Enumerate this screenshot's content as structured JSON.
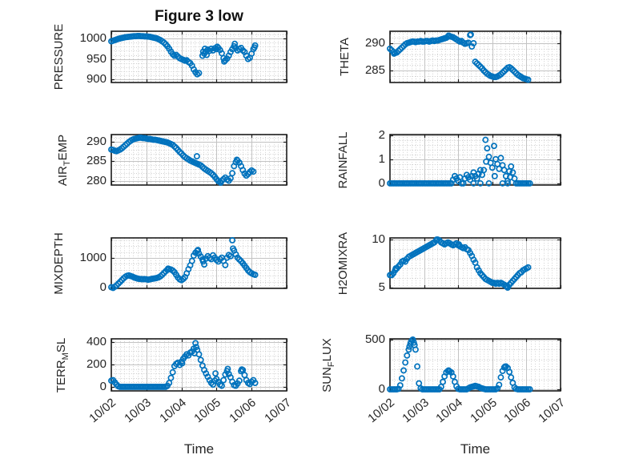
{
  "figure": {
    "title": "Figure 3 low",
    "xlabel": "Time",
    "marker_color": "#0072BD",
    "frame_color": "#1c1c1c",
    "text_color": "#262626",
    "major_grid_color": "#c3c3c3",
    "minor_grid_color": "#cccccc",
    "background_color": "#ffffff",
    "xtick_labels": [
      "10/02",
      "10/03",
      "10/04",
      "10/05",
      "10/06",
      "10/07"
    ]
  },
  "chart_data": [
    {
      "type": "scatter",
      "name": "pressure",
      "ylabel": "PRESSURE",
      "yticks": [
        900,
        950,
        1000
      ],
      "ylim": [
        893,
        1017.5
      ],
      "yminor_step": 10,
      "xlim": [
        0,
        5
      ],
      "xticks": [
        0,
        1,
        2,
        3,
        4,
        5
      ],
      "show_xtick_labels": false,
      "t0": 0,
      "dt": 0.05,
      "y": [
        993,
        994.5,
        996,
        997.5,
        999,
        1000,
        1001,
        1002,
        1003,
        1003.5,
        1004,
        1004.5,
        1005,
        1005.5,
        1005.5,
        1006,
        1006,
        1005.5,
        1005.5,
        1005,
        1005,
        1004.5,
        1004,
        1003,
        1002,
        1001,
        1000,
        998,
        996,
        993,
        990,
        986,
        981,
        975,
        968,
        962,
        958,
        960,
        956,
        952,
        950,
        948,
        946,
        947,
        943,
        940,
        934,
        925,
        918,
        913,
        916,
        null,
        958,
        963,
        968,
        973,
        970,
        975,
        971,
        976,
        974,
        977,
        972,
        964,
        952,
        947,
        951,
        958,
        967,
        974,
        981,
        977,
        971,
        974,
        977,
        971,
        967,
        958,
        950,
        953,
        963,
        974,
        983
      ],
      "extra_points": [
        [
          2.62,
          968
        ],
        [
          2.67,
          975
        ],
        [
          2.72,
          960
        ],
        [
          3.02,
          980
        ],
        [
          3.22,
          944
        ],
        [
          3.52,
          987
        ],
        [
          4.08,
          978
        ]
      ]
    },
    {
      "type": "scatter",
      "name": "theta",
      "ylabel": "THETA",
      "yticks": [
        285,
        290
      ],
      "ylim": [
        282.8,
        292.2
      ],
      "yminor_step": 1,
      "xlim": [
        0,
        5
      ],
      "xticks": [
        0,
        1,
        2,
        3,
        4,
        5
      ],
      "show_xtick_labels": false,
      "t0": 0,
      "dt": 0.05,
      "y": [
        289,
        288.7,
        288.4,
        288.2,
        288.3,
        288.6,
        288.9,
        289.2,
        289.5,
        289.8,
        290,
        290.1,
        290.2,
        290.3,
        290.3,
        290.2,
        290.3,
        290.3,
        290.4,
        290.3,
        290.3,
        290.4,
        290.4,
        290.3,
        290.4,
        290.5,
        290.4,
        290.5,
        290.5,
        290.6,
        290.7,
        290.8,
        290.9,
        291,
        291.2,
        291.3,
        291.2,
        291.1,
        290.9,
        290.7,
        290.5,
        290.3,
        290.4,
        290.1,
        289.9,
        290,
        290.1,
        291.5,
        289.4,
        290,
        286.6,
        286.3,
        286,
        285.7,
        285.4,
        285,
        284.7,
        284.4,
        284.2,
        284,
        283.9,
        283.8,
        283.8,
        283.9,
        284.1,
        284.3,
        284.6,
        284.9,
        285.2,
        285.5,
        285.6,
        285.4,
        285.1,
        284.8,
        284.5,
        284.2,
        284,
        283.8,
        283.6,
        283.5,
        283.4,
        283.3
      ],
      "extra_points": [
        [
          0.12,
          288.1
        ],
        [
          1.72,
          291.4
        ],
        [
          2.37,
          291.6
        ]
      ]
    },
    {
      "type": "scatter",
      "name": "air-temp",
      "ylabel": "AIR_{T}EMP",
      "yticks": [
        280,
        285,
        290
      ],
      "ylim": [
        279,
        291.8
      ],
      "yminor_step": 1,
      "xlim": [
        0,
        5
      ],
      "xticks": [
        0,
        1,
        2,
        3,
        4,
        5
      ],
      "show_xtick_labels": false,
      "t0": 0,
      "dt": 0.05,
      "y": [
        288,
        287.9,
        287.7,
        287.6,
        287.8,
        288,
        288.3,
        288.7,
        289.1,
        289.5,
        289.9,
        290.2,
        290.5,
        290.7,
        290.8,
        290.9,
        291,
        291,
        290.9,
        290.9,
        290.8,
        290.7,
        290.7,
        290.6,
        290.5,
        290.5,
        290.4,
        290.3,
        290.2,
        290.1,
        290,
        289.9,
        289.8,
        289.6,
        289.4,
        289.2,
        288.8,
        288.4,
        287.9,
        287.4,
        287,
        286.5,
        286.1,
        285.8,
        285.5,
        285.2,
        285,
        284.8,
        284.6,
        284.4,
        284.2,
        284,
        283.6,
        283.2,
        282.9,
        282.6,
        282.3,
        282,
        281.6,
        281.1,
        280.5,
        280,
        279.8,
        280.1,
        280.5,
        280.9,
        280.4,
        280.1,
        280.7,
        282,
        283.8,
        284.8,
        285.2,
        284.7,
        283.8,
        282.8,
        281.9,
        281.4,
        281.8,
        282.3,
        282.7,
        282.4
      ],
      "extra_points": [
        [
          2.44,
          286.3
        ],
        [
          3.12,
          279.6
        ],
        [
          3.58,
          285.4
        ]
      ]
    },
    {
      "type": "scatter",
      "name": "rainfall",
      "ylabel": "RAINFALL",
      "yticks": [
        0,
        1,
        2
      ],
      "ylim": [
        -0.07,
        2.02
      ],
      "yminor_step": 0.2,
      "xlim": [
        0,
        5
      ],
      "xticks": [
        0,
        1,
        2,
        3,
        4,
        5
      ],
      "show_xtick_labels": false,
      "t0": 0,
      "dt": 0.05,
      "y": [
        0,
        0,
        0,
        0,
        0,
        0,
        0,
        0,
        0,
        0,
        0,
        0,
        0,
        0,
        0,
        0,
        0,
        0,
        0,
        0,
        0,
        0,
        0,
        0,
        0,
        0,
        0,
        0,
        0,
        0,
        0,
        0,
        0,
        0,
        0,
        0,
        0,
        0.15,
        0.3,
        0.2,
        0.1,
        0.25,
        0,
        0,
        0.2,
        0.35,
        0.25,
        0.15,
        0.3,
        0.45,
        0.3,
        0.2,
        0.4,
        0.55,
        0.35,
        0.55,
        1.8,
        1.45,
        1.1,
        0.85,
        0.65,
        1.55,
        1,
        0.8,
        0.6,
        1.05,
        0.75,
        0.55,
        0.3,
        0.1,
        0.5,
        0.7,
        0.45,
        0.2,
        0,
        0,
        0,
        0,
        0,
        0,
        0,
        0,
        0
      ],
      "extra_points": [
        [
          2.82,
          0.9
        ],
        [
          3.07,
          0.3
        ],
        [
          3.52,
          0.25
        ],
        [
          2.45,
          0
        ],
        [
          2.65,
          0
        ],
        [
          2.9,
          0
        ],
        [
          3.3,
          0
        ],
        [
          3.45,
          0
        ]
      ]
    },
    {
      "type": "scatter",
      "name": "mixdepth",
      "ylabel": "MIXDEPTH",
      "yticks": [
        0,
        1000
      ],
      "ylim": [
        -30,
        1680
      ],
      "yminor_step": 200,
      "xlim": [
        0,
        5
      ],
      "xticks": [
        0,
        1,
        2,
        3,
        4,
        5
      ],
      "show_xtick_labels": false,
      "t0": 0,
      "dt": 0.05,
      "y": [
        10,
        -15,
        25,
        70,
        130,
        190,
        250,
        310,
        360,
        395,
        410,
        390,
        370,
        340,
        320,
        300,
        290,
        285,
        280,
        285,
        278,
        262,
        275,
        290,
        300,
        310,
        325,
        345,
        380,
        430,
        490,
        550,
        600,
        625,
        610,
        575,
        520,
        430,
        340,
        275,
        250,
        290,
        350,
        480,
        620,
        750,
        900,
        1080,
        1180,
        1240,
        1150,
        1050,
        950,
        780,
        980,
        1060,
        1000,
        960,
        1090,
        1010,
        930,
        880,
        960,
        1010,
        900,
        760,
        1010,
        1100,
        1060,
        1600,
        1250,
        1120,
        1010,
        950,
        890,
        820,
        740,
        660,
        580,
        520,
        480,
        450,
        430
      ],
      "extra_points": [
        [
          1.62,
          640
        ],
        [
          2.47,
          1270
        ],
        [
          2.62,
          880
        ],
        [
          3.47,
          1320
        ]
      ]
    },
    {
      "type": "scatter",
      "name": "h2omixra",
      "ylabel": "H2OMIXRA",
      "yticks": [
        5,
        10
      ],
      "ylim": [
        4.92,
        10.17
      ],
      "yminor_step": 1,
      "xlim": [
        0,
        5
      ],
      "xticks": [
        0,
        1,
        2,
        3,
        4,
        5
      ],
      "show_xtick_labels": false,
      "t0": 0,
      "dt": 0.05,
      "y": [
        6.3,
        6.3,
        6.5,
        6.8,
        7,
        7.2,
        7.4,
        7.7,
        7.8,
        7.7,
        8,
        8.2,
        8.3,
        8.4,
        8.5,
        8.6,
        8.7,
        8.8,
        8.9,
        9,
        9.1,
        9.2,
        9.3,
        9.4,
        9.5,
        9.6,
        9.7,
        9.9,
        10,
        9.9,
        9.7,
        9.6,
        9.5,
        9.6,
        9.7,
        9.6,
        9.5,
        9.4,
        9.5,
        9.6,
        9.4,
        9.3,
        9.2,
        9.1,
        9.2,
        9,
        8.9,
        8.6,
        8.3,
        7.9,
        7.6,
        7.1,
        6.8,
        6.5,
        6.3,
        6.1,
        5.9,
        5.8,
        5.7,
        5.6,
        5.5,
        5.5,
        5.4,
        5.5,
        5.4,
        5.5,
        5.4,
        5.3,
        5.2,
        5,
        5.3,
        5.5,
        5.7,
        5.9,
        6.1,
        6.3,
        6.5,
        6.6,
        6.8,
        6.9,
        7,
        7.1
      ],
      "extra_points": [
        [
          0.17,
          7.0
        ],
        [
          1.37,
          10.0
        ],
        [
          2.02,
          9.5
        ],
        [
          3.42,
          5.1
        ]
      ]
    },
    {
      "type": "scatter",
      "name": "terr-msl",
      "ylabel": "TERR_{M}SL",
      "yticks": [
        0,
        200,
        400
      ],
      "ylim": [
        -36,
        428
      ],
      "yminor_step": 40,
      "xlim": [
        0,
        5
      ],
      "xticks": [
        0,
        1,
        2,
        3,
        4,
        5
      ],
      "show_xtick_labels": true,
      "t0": 0,
      "dt": 0.05,
      "y": [
        55,
        60,
        40,
        20,
        5,
        0,
        0,
        0,
        0,
        0,
        0,
        0,
        0,
        0,
        0,
        0,
        0,
        0,
        0,
        0,
        0,
        0,
        0,
        0,
        0,
        0,
        0,
        0,
        0,
        0,
        0,
        0,
        10,
        35,
        80,
        130,
        185,
        205,
        215,
        195,
        225,
        250,
        270,
        290,
        280,
        305,
        315,
        340,
        390,
        330,
        290,
        240,
        190,
        150,
        120,
        90,
        60,
        35,
        20,
        55,
        70,
        45,
        20,
        10,
        60,
        110,
        140,
        115,
        85,
        45,
        15,
        10,
        30,
        55,
        140,
        150,
        105,
        60,
        35,
        25,
        45,
        60,
        35
      ],
      "extra_points": [
        [
          2.02,
          210
        ],
        [
          2.37,
          300
        ],
        [
          2.42,
          355
        ],
        [
          2.97,
          120
        ],
        [
          3.32,
          160
        ],
        [
          3.72,
          155
        ]
      ]
    },
    {
      "type": "scatter",
      "name": "sun-flux",
      "ylabel": "SUN_{F}LUX",
      "yticks": [
        0,
        500
      ],
      "ylim": [
        -16,
        508
      ],
      "yminor_step": 100,
      "xlim": [
        0,
        5
      ],
      "xticks": [
        0,
        1,
        2,
        3,
        4,
        5
      ],
      "show_xtick_labels": true,
      "t0": 0,
      "dt": 0.05,
      "y": [
        0,
        0,
        0,
        0,
        0,
        5,
        40,
        110,
        190,
        270,
        340,
        400,
        460,
        495,
        470,
        400,
        230,
        60,
        10,
        0,
        0,
        0,
        0,
        0,
        0,
        0,
        0,
        0,
        0,
        0,
        25,
        75,
        130,
        170,
        185,
        180,
        170,
        130,
        75,
        30,
        5,
        0,
        0,
        0,
        0,
        0,
        10,
        20,
        25,
        30,
        35,
        30,
        25,
        15,
        10,
        5,
        0,
        0,
        0,
        0,
        0,
        0,
        0,
        10,
        45,
        120,
        185,
        220,
        230,
        215,
        175,
        120,
        65,
        20,
        5,
        0,
        0,
        0,
        0,
        0,
        0,
        0,
        0
      ],
      "extra_points": [
        [
          0.57,
          430
        ],
        [
          0.62,
          480
        ],
        [
          0.67,
          500
        ],
        [
          0.72,
          445
        ],
        [
          1.72,
          190
        ],
        [
          3.37,
          228
        ]
      ]
    }
  ]
}
